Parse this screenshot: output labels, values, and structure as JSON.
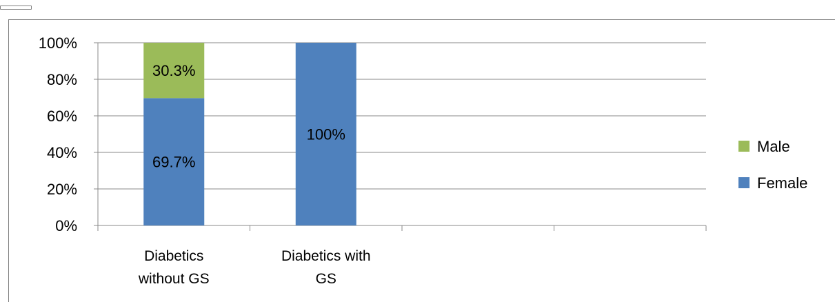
{
  "chart_data": {
    "type": "bar",
    "stacked": true,
    "percent_stacked": true,
    "categories": [
      "Diabetics\nwithout GS",
      "Diabetics with\nGS",
      "",
      ""
    ],
    "series": [
      {
        "name": "Female",
        "color": "#4f81bd",
        "values": [
          69.7,
          100,
          null,
          null
        ],
        "labels": [
          "69.7%",
          "100%",
          "",
          ""
        ]
      },
      {
        "name": "Male",
        "color": "#9bbb59",
        "values": [
          30.3,
          0,
          null,
          null
        ],
        "labels": [
          "30.3%",
          "",
          "",
          ""
        ]
      }
    ],
    "yticks": [
      "0%",
      "20%",
      "40%",
      "60%",
      "80%",
      "100%"
    ],
    "ylim": [
      0,
      100
    ],
    "grid": true,
    "legend": {
      "position": "right",
      "entries": [
        "Male",
        "Female"
      ]
    },
    "title": "",
    "xlabel": "",
    "ylabel": ""
  }
}
